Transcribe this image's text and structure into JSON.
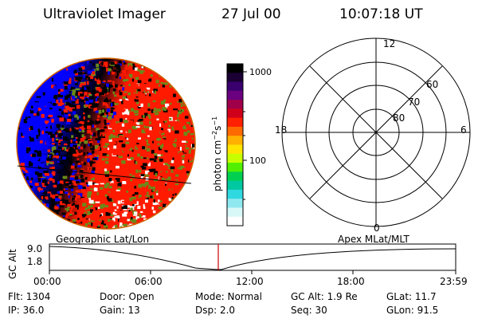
{
  "header": {
    "title": "Ultraviolet Imager",
    "date": "27 Jul 00",
    "time": "10:07:18 UT"
  },
  "colorbar": {
    "unit": "photon cm",
    "unit_exp1": "−2",
    "unit_mid": "s",
    "unit_exp2": "−1",
    "tick_top": "1000",
    "tick_bottom": "100",
    "scale": "log",
    "colors": [
      "#000000",
      "#1a0033",
      "#3a006e",
      "#6a0080",
      "#a0004a",
      "#d0001a",
      "#ff2000",
      "#ff6a00",
      "#ffb000",
      "#ffe400",
      "#c8ff00",
      "#50f000",
      "#00d050",
      "#00c8a0",
      "#30d8e0",
      "#8fe8f0",
      "#d8f8f8",
      "#ffffff"
    ]
  },
  "polar": {
    "mlt_labels": {
      "top": "12",
      "left": "18",
      "right": "6",
      "bottom": "0"
    },
    "lat_labels": [
      "60",
      "70",
      "80"
    ]
  },
  "timeline": {
    "left_label": "Geographic Lat/Lon",
    "right_label": "Apex MLat/MLT",
    "axis_label": "GC Alt",
    "y_top": "9.0",
    "y_bottom": "1.8",
    "x_ticks": [
      "00:00",
      "06:00",
      "12:00",
      "18:00",
      "23:59"
    ]
  },
  "info": {
    "row1": {
      "flt": "Flt: 1304",
      "door": "Door: Open",
      "mode": "Mode: Normal",
      "gcalt": "GC Alt: 1.9 Re",
      "glat": "GLat:  11.7"
    },
    "row2": {
      "ip": "IP: 36.0",
      "gain": "Gain: 13",
      "dsp": "Dsp:    2.0",
      "seq": "Seq: 30",
      "glon": "GLon:  91.5"
    }
  },
  "colors": {
    "blue": "#0000ff",
    "black": "#000000",
    "red": "#ff1a00",
    "green": "#6a8a1a",
    "cursor": "#cc0000",
    "limb": "#d06000"
  }
}
